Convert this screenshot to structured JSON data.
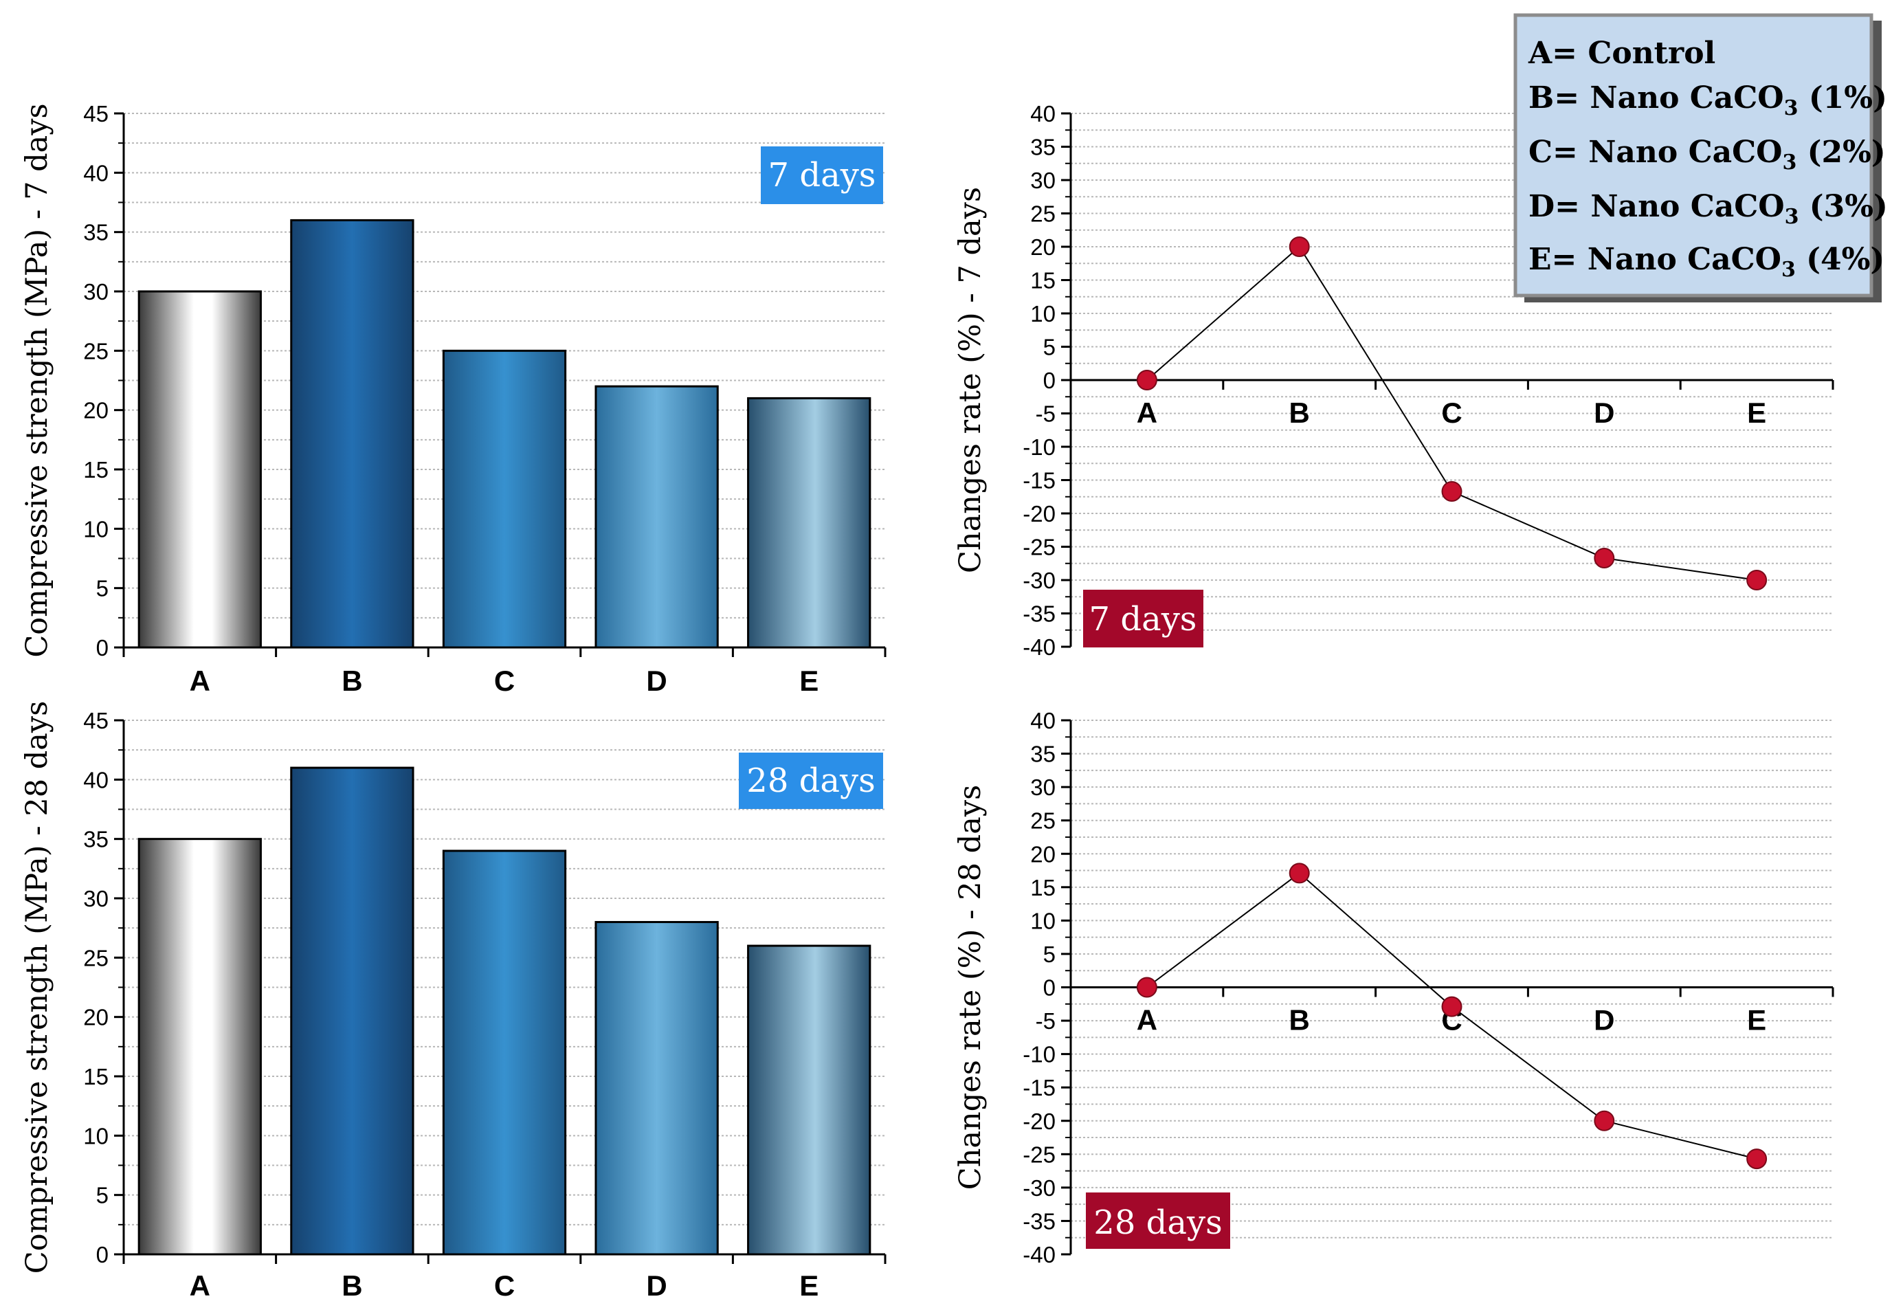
{
  "figure": {
    "legend": {
      "lines": [
        {
          "text": "A= Control",
          "sub": "",
          "after": ""
        },
        {
          "text": "B= Nano CaCO",
          "sub": "3",
          "after": " (1%)"
        },
        {
          "text": "C= Nano CaCO",
          "sub": "3",
          "after": " (2%)"
        },
        {
          "text": "D= Nano CaCO",
          "sub": "3",
          "after": " (3%)"
        },
        {
          "text": "E= Nano CaCO",
          "sub": "3",
          "after": " (4%)"
        }
      ],
      "colors": {
        "fill": "#c5d9ee",
        "border": "#8c8c8c",
        "shadow": "#555555"
      }
    },
    "colors": {
      "badge_blue": "#2b8fe8",
      "badge_red": "#a3082a",
      "marker": "#c8102e",
      "bar_A_edge": "#4a4a4a",
      "bar_B": "#1f66a8",
      "bar_C": "#2d82c2",
      "bar_D": "#63aedb",
      "bar_E": "#8ec3df"
    }
  },
  "chart_data": [
    {
      "id": "bar7",
      "type": "bar",
      "categories": [
        "A",
        "B",
        "C",
        "D",
        "E"
      ],
      "values": [
        30,
        36,
        25,
        22,
        21
      ],
      "ylabel": "Compressive strength (MPa) - 7 days",
      "ylim": [
        0,
        45
      ],
      "yticks": [
        0,
        5,
        10,
        15,
        20,
        25,
        30,
        35,
        40,
        45
      ],
      "badge": "7 days",
      "grid": true
    },
    {
      "id": "bar28",
      "type": "bar",
      "categories": [
        "A",
        "B",
        "C",
        "D",
        "E"
      ],
      "values": [
        35,
        41,
        34,
        28,
        26
      ],
      "ylabel": "Compressive strength (MPa) - 28 days",
      "ylim": [
        0,
        45
      ],
      "yticks": [
        0,
        5,
        10,
        15,
        20,
        25,
        30,
        35,
        40,
        45
      ],
      "badge": "28 days",
      "grid": true
    },
    {
      "id": "line7",
      "type": "line",
      "categories": [
        "A",
        "B",
        "C",
        "D",
        "E"
      ],
      "values": [
        0,
        20,
        -16.7,
        -26.7,
        -30
      ],
      "ylabel": "Changes rate (%) - 7 days",
      "ylim": [
        -40,
        40
      ],
      "yticks": [
        -40,
        -35,
        -30,
        -25,
        -20,
        -15,
        -10,
        -5,
        0,
        5,
        10,
        15,
        20,
        25,
        30,
        35,
        40
      ],
      "badge": "7 days",
      "grid": true
    },
    {
      "id": "line28",
      "type": "line",
      "categories": [
        "A",
        "B",
        "C",
        "D",
        "E"
      ],
      "values": [
        0,
        17.1,
        -2.9,
        -20,
        -25.7
      ],
      "ylabel": "Changes rate (%) - 28 days",
      "ylim": [
        -40,
        40
      ],
      "yticks": [
        -40,
        -35,
        -30,
        -25,
        -20,
        -15,
        -10,
        -5,
        0,
        5,
        10,
        15,
        20,
        25,
        30,
        35,
        40
      ],
      "badge": "28 days",
      "grid": true
    }
  ]
}
